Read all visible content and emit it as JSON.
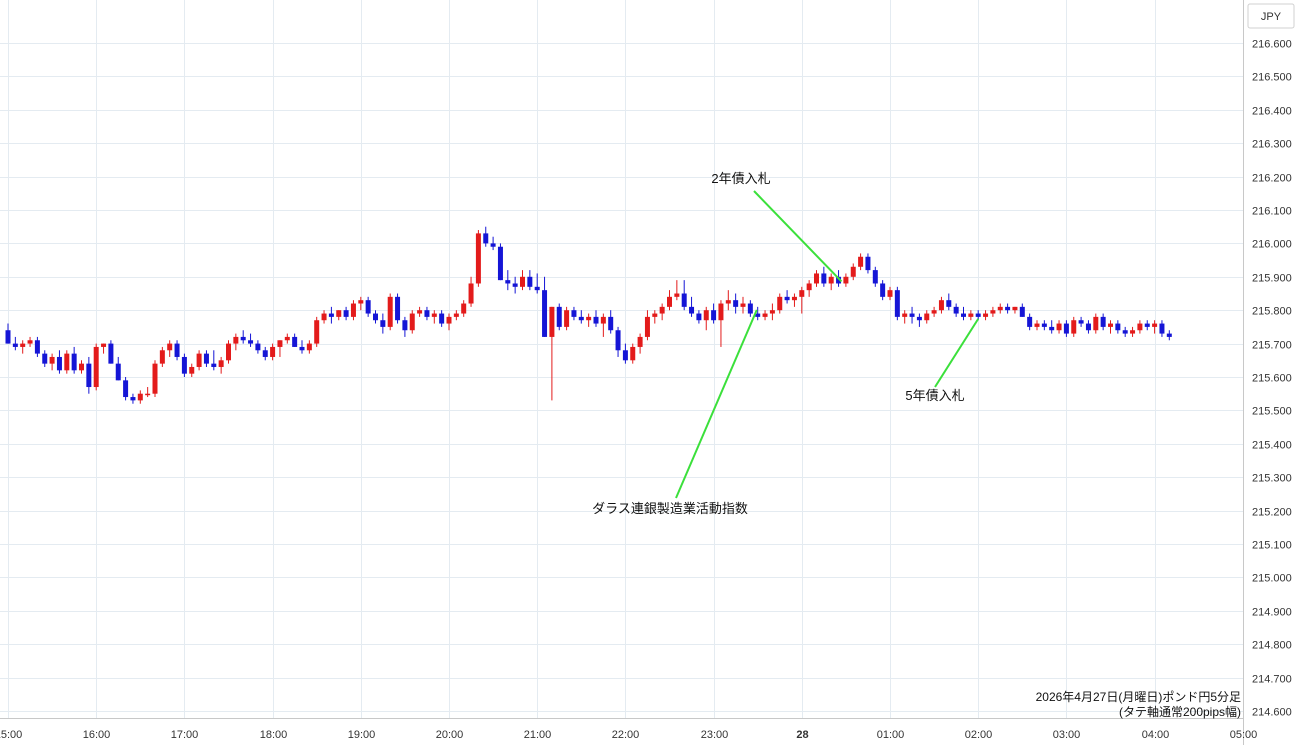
{
  "chart_data": {
    "type": "candlestick",
    "currency_label": "JPY",
    "y_ticks": [
      "216.600",
      "216.500",
      "216.400",
      "216.300",
      "216.200",
      "216.100",
      "216.000",
      "215.900",
      "215.800",
      "215.700",
      "215.600",
      "215.500",
      "215.400",
      "215.300",
      "215.200",
      "215.100",
      "215.000",
      "214.900",
      "214.800",
      "214.700",
      "214.600"
    ],
    "ylim": [
      214.58,
      216.66
    ],
    "x_ticks": [
      {
        "label": "15:00",
        "t": 0
      },
      {
        "label": "16:00",
        "t": 1
      },
      {
        "label": "17:00",
        "t": 2
      },
      {
        "label": "18:00",
        "t": 3
      },
      {
        "label": "19:00",
        "t": 4
      },
      {
        "label": "20:00",
        "t": 5
      },
      {
        "label": "21:00",
        "t": 6
      },
      {
        "label": "22:00",
        "t": 7
      },
      {
        "label": "23:00",
        "t": 8
      },
      {
        "label": "28",
        "t": 9,
        "bold": true
      },
      {
        "label": "01:00",
        "t": 10
      },
      {
        "label": "02:00",
        "t": 11
      },
      {
        "label": "03:00",
        "t": 12
      },
      {
        "label": "04:00",
        "t": 13
      },
      {
        "label": "05:00",
        "t": 14
      }
    ],
    "up_color": "#e31b1b",
    "down_color": "#1515d6",
    "candles": [
      [
        215.74,
        215.76,
        215.7,
        215.7
      ],
      [
        215.7,
        215.72,
        215.68,
        215.69
      ],
      [
        215.69,
        215.71,
        215.67,
        215.7
      ],
      [
        215.7,
        215.72,
        215.69,
        215.71
      ],
      [
        215.71,
        215.72,
        215.66,
        215.67
      ],
      [
        215.67,
        215.68,
        215.63,
        215.64
      ],
      [
        215.64,
        215.67,
        215.62,
        215.66
      ],
      [
        215.66,
        215.68,
        215.61,
        215.62
      ],
      [
        215.62,
        215.68,
        215.61,
        215.67
      ],
      [
        215.67,
        215.69,
        215.61,
        215.62
      ],
      [
        215.62,
        215.65,
        215.61,
        215.64
      ],
      [
        215.64,
        215.66,
        215.55,
        215.57
      ],
      [
        215.57,
        215.7,
        215.56,
        215.69
      ],
      [
        215.69,
        215.7,
        215.67,
        215.7
      ],
      [
        215.7,
        215.71,
        215.64,
        215.64
      ],
      [
        215.64,
        215.66,
        215.59,
        215.59
      ],
      [
        215.59,
        215.6,
        215.53,
        215.54
      ],
      [
        215.54,
        215.55,
        215.52,
        215.53
      ],
      [
        215.53,
        215.56,
        215.52,
        215.55
      ],
      [
        215.55,
        215.57,
        215.54,
        215.55
      ],
      [
        215.55,
        215.65,
        215.54,
        215.64
      ],
      [
        215.64,
        215.69,
        215.63,
        215.68
      ],
      [
        215.68,
        215.71,
        215.66,
        215.7
      ],
      [
        215.7,
        215.71,
        215.65,
        215.66
      ],
      [
        215.66,
        215.67,
        215.6,
        215.61
      ],
      [
        215.61,
        215.64,
        215.6,
        215.63
      ],
      [
        215.63,
        215.68,
        215.62,
        215.67
      ],
      [
        215.67,
        215.68,
        215.63,
        215.64
      ],
      [
        215.64,
        215.68,
        215.62,
        215.63
      ],
      [
        215.63,
        215.66,
        215.61,
        215.65
      ],
      [
        215.65,
        215.71,
        215.64,
        215.7
      ],
      [
        215.7,
        215.73,
        215.68,
        215.72
      ],
      [
        215.72,
        215.74,
        215.7,
        215.71
      ],
      [
        215.71,
        215.73,
        215.69,
        215.7
      ],
      [
        215.7,
        215.71,
        215.67,
        215.68
      ],
      [
        215.68,
        215.69,
        215.65,
        215.66
      ],
      [
        215.66,
        215.7,
        215.65,
        215.69
      ],
      [
        215.69,
        215.71,
        215.66,
        215.71
      ],
      [
        215.71,
        215.73,
        215.7,
        215.72
      ],
      [
        215.72,
        215.73,
        215.69,
        215.69
      ],
      [
        215.69,
        215.71,
        215.67,
        215.68
      ],
      [
        215.68,
        215.71,
        215.67,
        215.7
      ],
      [
        215.7,
        215.78,
        215.69,
        215.77
      ],
      [
        215.77,
        215.8,
        215.76,
        215.79
      ],
      [
        215.79,
        215.81,
        215.76,
        215.78
      ],
      [
        215.78,
        215.8,
        215.77,
        215.8
      ],
      [
        215.8,
        215.81,
        215.77,
        215.78
      ],
      [
        215.78,
        215.83,
        215.77,
        215.82
      ],
      [
        215.82,
        215.84,
        215.8,
        215.83
      ],
      [
        215.83,
        215.84,
        215.78,
        215.79
      ],
      [
        215.79,
        215.8,
        215.76,
        215.77
      ],
      [
        215.77,
        215.79,
        215.73,
        215.75
      ],
      [
        215.75,
        215.85,
        215.74,
        215.84
      ],
      [
        215.84,
        215.85,
        215.76,
        215.77
      ],
      [
        215.77,
        215.78,
        215.72,
        215.74
      ],
      [
        215.74,
        215.8,
        215.73,
        215.79
      ],
      [
        215.79,
        215.81,
        215.78,
        215.8
      ],
      [
        215.8,
        215.81,
        215.77,
        215.78
      ],
      [
        215.78,
        215.8,
        215.76,
        215.79
      ],
      [
        215.79,
        215.8,
        215.75,
        215.76
      ],
      [
        215.76,
        215.79,
        215.74,
        215.78
      ],
      [
        215.78,
        215.8,
        215.77,
        215.79
      ],
      [
        215.79,
        215.83,
        215.78,
        215.82
      ],
      [
        215.82,
        215.9,
        215.81,
        215.88
      ],
      [
        215.88,
        216.04,
        215.87,
        216.03
      ],
      [
        216.03,
        216.05,
        215.99,
        216.0
      ],
      [
        216.0,
        216.02,
        215.98,
        215.99
      ],
      [
        215.99,
        216.0,
        215.89,
        215.89
      ],
      [
        215.89,
        215.92,
        215.86,
        215.88
      ],
      [
        215.88,
        215.9,
        215.85,
        215.87
      ],
      [
        215.87,
        215.92,
        215.86,
        215.9
      ],
      [
        215.9,
        215.92,
        215.86,
        215.87
      ],
      [
        215.87,
        215.91,
        215.85,
        215.86
      ],
      [
        215.86,
        215.9,
        215.72,
        215.72
      ],
      [
        215.72,
        215.81,
        215.53,
        215.81
      ],
      [
        215.81,
        215.82,
        215.74,
        215.75
      ],
      [
        215.75,
        215.81,
        215.74,
        215.8
      ],
      [
        215.8,
        215.81,
        215.77,
        215.78
      ],
      [
        215.78,
        215.8,
        215.76,
        215.77
      ],
      [
        215.77,
        215.79,
        215.75,
        215.78
      ],
      [
        215.78,
        215.8,
        215.75,
        215.76
      ],
      [
        215.76,
        215.79,
        215.72,
        215.78
      ],
      [
        215.78,
        215.8,
        215.73,
        215.74
      ],
      [
        215.74,
        215.75,
        215.66,
        215.68
      ],
      [
        215.68,
        215.7,
        215.64,
        215.65
      ],
      [
        215.65,
        215.7,
        215.64,
        215.69
      ],
      [
        215.69,
        215.73,
        215.67,
        215.72
      ],
      [
        215.72,
        215.8,
        215.71,
        215.78
      ],
      [
        215.78,
        215.8,
        215.76,
        215.79
      ],
      [
        215.79,
        215.82,
        215.77,
        215.81
      ],
      [
        215.81,
        215.86,
        215.8,
        215.84
      ],
      [
        215.84,
        215.89,
        215.83,
        215.85
      ],
      [
        215.85,
        215.89,
        215.8,
        215.81
      ],
      [
        215.81,
        215.84,
        215.78,
        215.79
      ],
      [
        215.79,
        215.8,
        215.76,
        215.77
      ],
      [
        215.77,
        215.81,
        215.74,
        215.8
      ],
      [
        215.8,
        215.82,
        215.76,
        215.77
      ],
      [
        215.77,
        215.83,
        215.69,
        215.82
      ],
      [
        215.82,
        215.86,
        215.8,
        215.83
      ],
      [
        215.83,
        215.85,
        215.79,
        215.81
      ],
      [
        215.81,
        215.84,
        215.79,
        215.82
      ],
      [
        215.82,
        215.83,
        215.78,
        215.79
      ],
      [
        215.79,
        215.81,
        215.77,
        215.78
      ],
      [
        215.78,
        215.8,
        215.77,
        215.79
      ],
      [
        215.79,
        215.82,
        215.77,
        215.8
      ],
      [
        215.8,
        215.85,
        215.79,
        215.84
      ],
      [
        215.84,
        215.86,
        215.82,
        215.83
      ],
      [
        215.83,
        215.85,
        215.81,
        215.84
      ],
      [
        215.84,
        215.87,
        215.79,
        215.86
      ],
      [
        215.86,
        215.89,
        215.84,
        215.88
      ],
      [
        215.88,
        215.92,
        215.87,
        215.91
      ],
      [
        215.91,
        215.93,
        215.87,
        215.88
      ],
      [
        215.88,
        215.91,
        215.86,
        215.9
      ],
      [
        215.9,
        215.92,
        215.87,
        215.88
      ],
      [
        215.88,
        215.91,
        215.87,
        215.9
      ],
      [
        215.9,
        215.94,
        215.89,
        215.93
      ],
      [
        215.93,
        215.97,
        215.92,
        215.96
      ],
      [
        215.96,
        215.97,
        215.91,
        215.92
      ],
      [
        215.92,
        215.93,
        215.87,
        215.88
      ],
      [
        215.88,
        215.89,
        215.83,
        215.84
      ],
      [
        215.84,
        215.87,
        215.83,
        215.86
      ],
      [
        215.86,
        215.87,
        215.77,
        215.78
      ],
      [
        215.78,
        215.8,
        215.76,
        215.79
      ],
      [
        215.79,
        215.81,
        215.76,
        215.78
      ],
      [
        215.78,
        215.79,
        215.75,
        215.77
      ],
      [
        215.77,
        215.8,
        215.76,
        215.79
      ],
      [
        215.79,
        215.81,
        215.78,
        215.8
      ],
      [
        215.8,
        215.84,
        215.79,
        215.83
      ],
      [
        215.83,
        215.85,
        215.8,
        215.81
      ],
      [
        215.81,
        215.82,
        215.78,
        215.79
      ],
      [
        215.79,
        215.81,
        215.77,
        215.78
      ],
      [
        215.78,
        215.8,
        215.77,
        215.79
      ],
      [
        215.79,
        215.8,
        215.77,
        215.78
      ],
      [
        215.78,
        215.8,
        215.77,
        215.79
      ],
      [
        215.79,
        215.81,
        215.78,
        215.8
      ],
      [
        215.8,
        215.82,
        215.79,
        215.81
      ],
      [
        215.81,
        215.82,
        215.79,
        215.8
      ],
      [
        215.8,
        215.81,
        215.79,
        215.81
      ],
      [
        215.81,
        215.82,
        215.78,
        215.78
      ],
      [
        215.78,
        215.79,
        215.74,
        215.75
      ],
      [
        215.75,
        215.77,
        215.74,
        215.76
      ],
      [
        215.76,
        215.77,
        215.74,
        215.75
      ],
      [
        215.75,
        215.77,
        215.73,
        215.74
      ],
      [
        215.74,
        215.77,
        215.73,
        215.76
      ],
      [
        215.76,
        215.77,
        215.72,
        215.73
      ],
      [
        215.73,
        215.78,
        215.72,
        215.77
      ],
      [
        215.77,
        215.78,
        215.75,
        215.76
      ],
      [
        215.76,
        215.77,
        215.73,
        215.74
      ],
      [
        215.74,
        215.79,
        215.73,
        215.78
      ],
      [
        215.78,
        215.79,
        215.74,
        215.75
      ],
      [
        215.75,
        215.77,
        215.73,
        215.76
      ],
      [
        215.76,
        215.77,
        215.73,
        215.74
      ],
      [
        215.74,
        215.75,
        215.72,
        215.73
      ],
      [
        215.73,
        215.75,
        215.72,
        215.74
      ],
      [
        215.74,
        215.77,
        215.73,
        215.76
      ],
      [
        215.76,
        215.77,
        215.74,
        215.75
      ],
      [
        215.75,
        215.77,
        215.73,
        215.76
      ],
      [
        215.76,
        215.77,
        215.72,
        215.73
      ],
      [
        215.73,
        215.74,
        215.71,
        215.72
      ]
    ],
    "annotations": [
      {
        "text": "2年債入札",
        "t": 9.45
      },
      {
        "text": "ダラス連銀製造業活動指数",
        "t": 8.49
      },
      {
        "text": "5年債入札",
        "t": 11.0
      }
    ],
    "footer_line1": "2026年4月27日(月曜日)ポンド円5分足",
    "footer_line2": "(タテ軸通常200pips幅)"
  }
}
